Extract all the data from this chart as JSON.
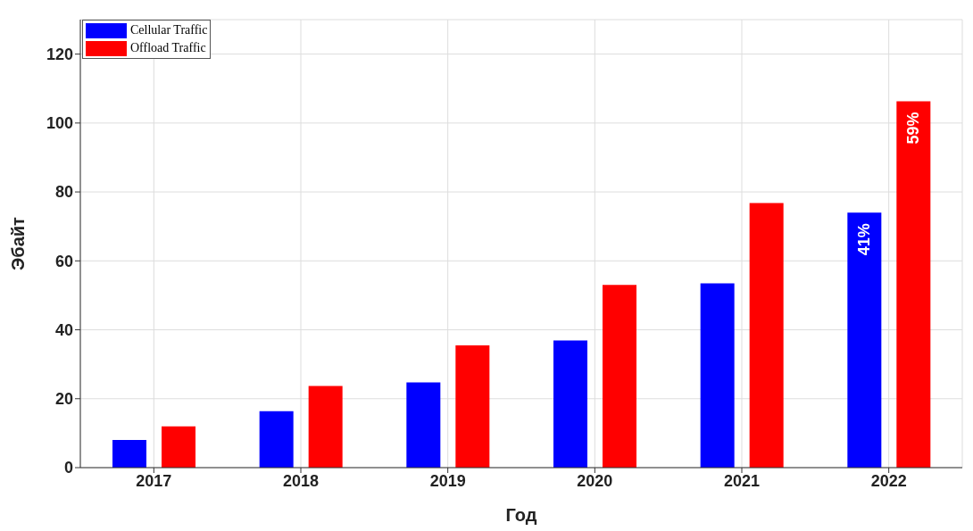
{
  "chart_data": {
    "type": "bar",
    "xlabel": "Год",
    "ylabel": "Эбайт",
    "categories": [
      "2017",
      "2018",
      "2019",
      "2020",
      "2021",
      "2022"
    ],
    "series": [
      {
        "name": "Cellular Traffic",
        "color": "#0000ff",
        "values": [
          8,
          16.4,
          24.7,
          36.9,
          53.5,
          74
        ]
      },
      {
        "name": "Offload Traffic",
        "color": "#ff0000",
        "values": [
          12,
          23.7,
          35.5,
          53,
          76.8,
          106.3
        ]
      }
    ],
    "annotations": [
      "41%",
      "59%"
    ],
    "ylim": [
      0,
      130
    ],
    "yticks": [
      0,
      20,
      40,
      60,
      80,
      100,
      120
    ],
    "grid": true,
    "legend": "top left"
  }
}
